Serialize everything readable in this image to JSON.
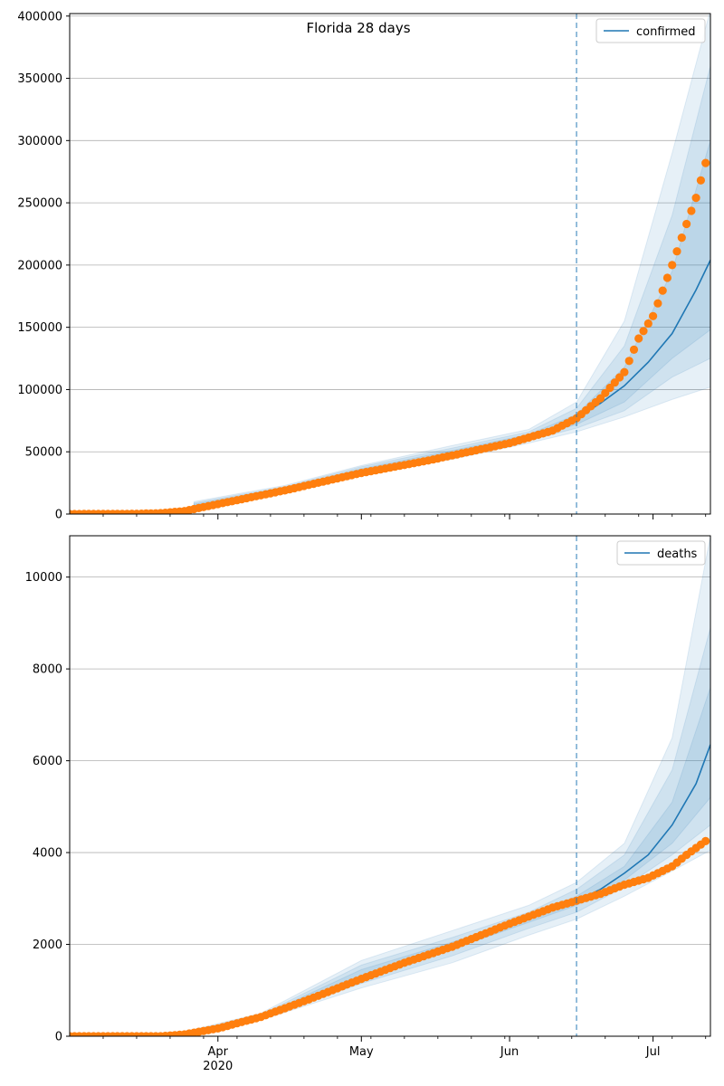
{
  "chart_data": [
    {
      "type": "line",
      "title": "Florida 28 days",
      "legend": {
        "label": "confirmed",
        "placement": "top-right"
      },
      "ylim": [
        0,
        402000
      ],
      "yticks": [
        0,
        50000,
        100000,
        150000,
        200000,
        250000,
        300000,
        350000,
        400000
      ],
      "ytick_labels": [
        "0",
        "50000",
        "100000",
        "150000",
        "200000",
        "250000",
        "300000",
        "350000",
        "400000"
      ],
      "grid": "horizontal",
      "forecast_start": "2020-06-15",
      "forecast_line": {
        "dates": [
          "2020-06-15",
          "2020-06-20",
          "2020-06-25",
          "2020-06-30",
          "2020-07-05",
          "2020-07-10",
          "2020-07-13"
        ],
        "values": [
          77000,
          89000,
          103000,
          122000,
          145000,
          180000,
          204000
        ]
      },
      "bands": [
        {
          "dates": [
            "2020-03-27",
            "2020-04-15",
            "2020-05-01",
            "2020-05-20",
            "2020-06-05",
            "2020-06-15",
            "2020-06-25",
            "2020-07-05",
            "2020-07-13"
          ],
          "lower": [
            5000,
            18000,
            32000,
            44000,
            57000,
            66000,
            78000,
            92000,
            102000
          ],
          "upper": [
            10000,
            23000,
            39000,
            55000,
            68000,
            90000,
            155000,
            290000,
            405000
          ]
        },
        {
          "dates": [
            "2020-03-27",
            "2020-04-15",
            "2020-05-01",
            "2020-05-20",
            "2020-06-05",
            "2020-06-15",
            "2020-06-25",
            "2020-07-05",
            "2020-07-13"
          ],
          "lower": [
            6000,
            19000,
            33000,
            46000,
            59000,
            69000,
            83000,
            110000,
            125000
          ],
          "upper": [
            9000,
            22000,
            38000,
            53000,
            66000,
            85000,
            135000,
            240000,
            360000
          ]
        },
        {
          "dates": [
            "2020-03-27",
            "2020-04-15",
            "2020-05-01",
            "2020-05-20",
            "2020-06-05",
            "2020-06-15",
            "2020-06-25",
            "2020-07-05",
            "2020-07-13"
          ],
          "lower": [
            7000,
            20000,
            34500,
            48000,
            61000,
            72000,
            90000,
            125000,
            148000
          ],
          "upper": [
            8000,
            21000,
            36500,
            51000,
            64000,
            80000,
            118000,
            195000,
            300000
          ]
        }
      ],
      "observed": {
        "start_date": "2020-03-01",
        "anchors": [
          [
            "2020-03-01",
            0
          ],
          [
            "2020-03-15",
            200
          ],
          [
            "2020-03-20",
            700
          ],
          [
            "2020-03-25",
            2400
          ],
          [
            "2020-04-01",
            8000
          ],
          [
            "2020-04-15",
            19000
          ],
          [
            "2020-05-01",
            33000
          ],
          [
            "2020-05-15",
            43000
          ],
          [
            "2020-06-01",
            57000
          ],
          [
            "2020-06-10",
            67000
          ],
          [
            "2020-06-15",
            77000
          ],
          [
            "2020-06-20",
            93000
          ],
          [
            "2020-06-25",
            114000
          ],
          [
            "2020-06-28",
            141000
          ],
          [
            "2020-07-01",
            159000
          ],
          [
            "2020-07-05",
            200000
          ],
          [
            "2020-07-08",
            233000
          ],
          [
            "2020-07-10",
            254000
          ],
          [
            "2020-07-12",
            282000
          ]
        ]
      },
      "x_ticks": [
        {
          "date": "2020-04-01",
          "label": "Apr",
          "sublabel": "2020"
        },
        {
          "date": "2020-05-01",
          "label": "May",
          "sublabel": ""
        },
        {
          "date": "2020-06-01",
          "label": "Jun",
          "sublabel": ""
        },
        {
          "date": "2020-07-01",
          "label": "Jul",
          "sublabel": ""
        }
      ],
      "show_x_labels": false,
      "colors": {
        "forecast": "#1f77b4",
        "observed": "#ff7f0e",
        "band": "#1f77b4",
        "grid": "#b0b0b0"
      }
    },
    {
      "type": "line",
      "title": "",
      "legend": {
        "label": "deaths",
        "placement": "top-right"
      },
      "ylim": [
        0,
        10900
      ],
      "yticks": [
        0,
        2000,
        4000,
        6000,
        8000,
        10000
      ],
      "ytick_labels": [
        "0",
        "2000",
        "4000",
        "6000",
        "8000",
        "10000"
      ],
      "grid": "horizontal",
      "forecast_start": "2020-06-15",
      "forecast_line": {
        "dates": [
          "2020-06-15",
          "2020-06-20",
          "2020-06-25",
          "2020-06-30",
          "2020-07-05",
          "2020-07-10",
          "2020-07-13"
        ],
        "values": [
          2950,
          3200,
          3550,
          3950,
          4600,
          5500,
          6350
        ]
      },
      "bands": [
        {
          "dates": [
            "2020-03-27",
            "2020-04-10",
            "2020-05-01",
            "2020-05-20",
            "2020-06-05",
            "2020-06-15",
            "2020-06-25",
            "2020-07-05",
            "2020-07-13"
          ],
          "lower": [
            50,
            350,
            1050,
            1600,
            2200,
            2550,
            3050,
            3600,
            4050
          ],
          "upper": [
            150,
            500,
            1650,
            2300,
            2850,
            3350,
            4200,
            6500,
            10900
          ]
        },
        {
          "dates": [
            "2020-03-27",
            "2020-04-10",
            "2020-05-01",
            "2020-05-20",
            "2020-06-05",
            "2020-06-15",
            "2020-06-25",
            "2020-07-05",
            "2020-07-13"
          ],
          "lower": [
            70,
            380,
            1150,
            1750,
            2350,
            2700,
            3250,
            3950,
            4600
          ],
          "upper": [
            130,
            470,
            1550,
            2150,
            2700,
            3200,
            3950,
            5800,
            8900
          ]
        },
        {
          "dates": [
            "2020-03-27",
            "2020-04-10",
            "2020-05-01",
            "2020-05-20",
            "2020-06-05",
            "2020-06-15",
            "2020-06-25",
            "2020-07-05",
            "2020-07-13"
          ],
          "lower": [
            85,
            410,
            1250,
            1900,
            2480,
            2850,
            3400,
            4200,
            5200
          ],
          "upper": [
            115,
            440,
            1450,
            2050,
            2600,
            3050,
            3700,
            5100,
            7600
          ]
        }
      ],
      "observed": {
        "start_date": "2020-03-01",
        "anchors": [
          [
            "2020-03-01",
            0
          ],
          [
            "2020-03-20",
            0
          ],
          [
            "2020-03-25",
            40
          ],
          [
            "2020-04-01",
            170
          ],
          [
            "2020-04-10",
            420
          ],
          [
            "2020-04-20",
            800
          ],
          [
            "2020-05-01",
            1250
          ],
          [
            "2020-05-10",
            1600
          ],
          [
            "2020-05-20",
            1950
          ],
          [
            "2020-06-01",
            2450
          ],
          [
            "2020-06-10",
            2800
          ],
          [
            "2020-06-15",
            2950
          ],
          [
            "2020-06-20",
            3100
          ],
          [
            "2020-06-25",
            3300
          ],
          [
            "2020-06-30",
            3450
          ],
          [
            "2020-07-05",
            3700
          ],
          [
            "2020-07-08",
            3950
          ],
          [
            "2020-07-12",
            4250
          ]
        ]
      },
      "x_ticks": [
        {
          "date": "2020-04-01",
          "label": "Apr",
          "sublabel": "2020"
        },
        {
          "date": "2020-05-01",
          "label": "May",
          "sublabel": ""
        },
        {
          "date": "2020-06-01",
          "label": "Jun",
          "sublabel": ""
        },
        {
          "date": "2020-07-01",
          "label": "Jul",
          "sublabel": ""
        }
      ],
      "show_x_labels": true,
      "colors": {
        "forecast": "#1f77b4",
        "observed": "#ff7f0e",
        "band": "#1f77b4",
        "grid": "#b0b0b0"
      }
    }
  ],
  "x_axis": {
    "xlim": [
      "2020-03-01",
      "2020-07-13"
    ]
  }
}
